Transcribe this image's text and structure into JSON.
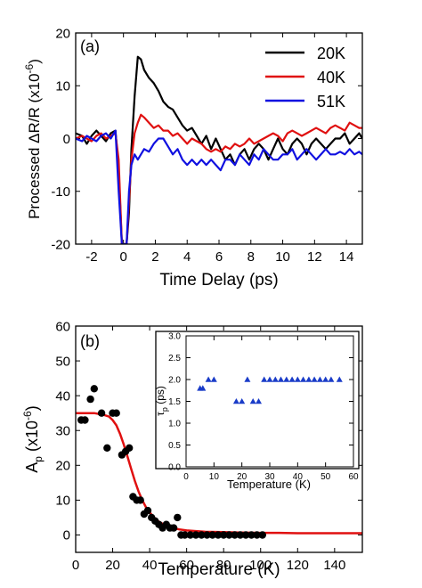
{
  "chart_data": [
    {
      "type": "line",
      "panel_label": "(a)",
      "xlabel": "Time Delay (ps)",
      "ylabel": "Processed ΔR/R (x10",
      "ylabel_exp": "-6",
      "ylabel_close": ")",
      "xlim": [
        -3,
        15
      ],
      "ylim": [
        -20,
        20
      ],
      "xticks": [
        -2,
        0,
        2,
        4,
        6,
        8,
        10,
        12,
        14
      ],
      "yticks": [
        -20,
        -10,
        0,
        10,
        20
      ],
      "legend_position": "top-right",
      "series": [
        {
          "name": "20K",
          "color": "#000000",
          "x": [
            -3,
            -2.6,
            -2.3,
            -2.0,
            -1.7,
            -1.4,
            -1.1,
            -0.8,
            -0.5,
            -0.3,
            -0.1,
            0.05,
            0.2,
            0.35,
            0.5,
            0.7,
            0.9,
            1.1,
            1.3,
            1.6,
            1.9,
            2.2,
            2.5,
            2.8,
            3.1,
            3.4,
            3.7,
            4.0,
            4.3,
            4.6,
            4.9,
            5.2,
            5.5,
            5.8,
            6.1,
            6.4,
            6.7,
            7.0,
            7.3,
            7.6,
            7.9,
            8.2,
            8.5,
            8.8,
            9.1,
            9.4,
            9.7,
            10.0,
            10.3,
            10.6,
            10.9,
            11.2,
            11.5,
            11.8,
            12.1,
            12.4,
            12.7,
            13.0,
            13.3,
            13.6,
            13.9,
            14.2,
            14.5,
            14.8,
            15.0
          ],
          "y": [
            1,
            0.5,
            -1,
            0.5,
            1.5,
            0.5,
            -0.5,
            1,
            1.5,
            -6,
            -20,
            -20,
            -20,
            -14,
            -2,
            8,
            15.5,
            15,
            13,
            11.5,
            10.5,
            9,
            7,
            6,
            5.5,
            4,
            2.5,
            1.5,
            2,
            0.5,
            -1,
            0.5,
            -2,
            0,
            -2,
            -4,
            -3,
            -5,
            -3,
            -2,
            -4,
            -2,
            -1,
            -2,
            -4,
            -2,
            0,
            -2,
            -3,
            -1,
            0,
            -1,
            -3,
            -1,
            0,
            -1,
            -2,
            -1,
            0,
            0,
            1,
            -1,
            0,
            1,
            0
          ]
        },
        {
          "name": "40K",
          "color": "#e01010",
          "x": [
            -3,
            -2.6,
            -2.3,
            -2.0,
            -1.7,
            -1.4,
            -1.1,
            -0.8,
            -0.5,
            -0.3,
            -0.1,
            0.05,
            0.2,
            0.35,
            0.5,
            0.7,
            0.9,
            1.1,
            1.3,
            1.6,
            1.9,
            2.2,
            2.5,
            2.8,
            3.1,
            3.4,
            3.7,
            4.0,
            4.3,
            4.6,
            4.9,
            5.2,
            5.5,
            5.8,
            6.1,
            6.4,
            6.7,
            7.0,
            7.3,
            7.6,
            7.9,
            8.2,
            8.5,
            8.8,
            9.1,
            9.4,
            9.7,
            10.0,
            10.3,
            10.6,
            10.9,
            11.2,
            11.5,
            11.8,
            12.1,
            12.4,
            12.7,
            13.0,
            13.3,
            13.6,
            13.9,
            14.2,
            14.5,
            14.8,
            15.0
          ],
          "y": [
            0,
            0.5,
            0,
            -0.5,
            0.5,
            1,
            0,
            0.5,
            1,
            -4,
            -20,
            -20,
            -20,
            -12,
            -4,
            1,
            3,
            4.5,
            4,
            3,
            2,
            2.5,
            1.5,
            1.5,
            0.5,
            1,
            0,
            -1,
            0,
            -0.5,
            -1,
            -2,
            -2.5,
            -2,
            -2.5,
            -1.5,
            -2,
            -1,
            -1.5,
            -1,
            0,
            -1,
            -0.5,
            0,
            0.5,
            1,
            0.5,
            -0.5,
            1,
            1.5,
            1,
            0.5,
            1,
            1.5,
            2,
            1.5,
            1,
            2,
            2.5,
            2,
            1.5,
            3,
            2.5,
            2,
            2
          ]
        },
        {
          "name": "51K",
          "color": "#1010e0",
          "x": [
            -3,
            -2.6,
            -2.3,
            -2.0,
            -1.7,
            -1.4,
            -1.1,
            -0.8,
            -0.5,
            -0.3,
            -0.1,
            0.05,
            0.2,
            0.35,
            0.5,
            0.7,
            0.9,
            1.1,
            1.3,
            1.6,
            1.9,
            2.2,
            2.5,
            2.8,
            3.1,
            3.4,
            3.7,
            4.0,
            4.3,
            4.6,
            4.9,
            5.2,
            5.5,
            5.8,
            6.1,
            6.4,
            6.7,
            7.0,
            7.3,
            7.6,
            7.9,
            8.2,
            8.5,
            8.8,
            9.1,
            9.4,
            9.7,
            10.0,
            10.3,
            10.6,
            10.9,
            11.2,
            11.5,
            11.8,
            12.1,
            12.4,
            12.7,
            13.0,
            13.3,
            13.6,
            13.9,
            14.2,
            14.5,
            14.8,
            15.0
          ],
          "y": [
            0,
            -0.5,
            0.5,
            0,
            -0.5,
            0.5,
            1,
            0,
            1.5,
            -10,
            -20,
            -20,
            -20,
            -10,
            -5,
            -3,
            -4,
            -3,
            -2,
            -2.5,
            -1,
            0,
            0,
            -1.5,
            -3,
            -2,
            -4,
            -5,
            -4,
            -5,
            -4,
            -5,
            -4,
            -5,
            -6,
            -4,
            -4,
            -5,
            -3,
            -4,
            -5,
            -3,
            -4,
            -2,
            -3,
            -4,
            -4,
            -3,
            -3,
            -2,
            -4,
            -3,
            -2,
            -3,
            -4,
            -3,
            -2,
            -3,
            -3,
            -2.5,
            -3,
            -2,
            -3,
            -2.5,
            -3
          ]
        }
      ]
    },
    {
      "type": "scatter",
      "panel_label": "(b)",
      "xlabel": "Temperature (K)",
      "ylabel_main": "A",
      "ylabel_sub": "p",
      "ylabel_rest": " (x10",
      "ylabel_exp": "-6",
      "ylabel_close": ")",
      "xlim": [
        0,
        155
      ],
      "ylim": [
        -5,
        60
      ],
      "xticks": [
        0,
        20,
        40,
        60,
        80,
        100,
        120,
        140
      ],
      "yticks": [
        0,
        10,
        20,
        30,
        40,
        50,
        60
      ],
      "series": [
        {
          "kind": "points",
          "color": "#000000",
          "x": [
            3,
            5,
            8,
            10,
            14,
            17,
            20,
            22,
            25,
            27,
            29,
            31,
            33,
            35,
            37,
            39,
            41,
            43,
            45,
            47,
            49,
            51,
            53,
            55,
            57,
            59,
            62,
            65,
            68,
            71,
            74,
            77,
            80,
            83,
            86,
            89,
            92,
            95,
            98,
            101
          ],
          "y": [
            33,
            33,
            39,
            42,
            35,
            25,
            35,
            35,
            23,
            24,
            25,
            11,
            10,
            10,
            6,
            7,
            5,
            4,
            3,
            2,
            3,
            2,
            2,
            5,
            0,
            0,
            0,
            0,
            0,
            0,
            0,
            0,
            0,
            0,
            0,
            0,
            0,
            0,
            0,
            0
          ]
        },
        {
          "kind": "fit-line",
          "color": "#e01010",
          "x": [
            0,
            5,
            10,
            15,
            18,
            20,
            22,
            24,
            26,
            28,
            30,
            32,
            34,
            36,
            38,
            40,
            42,
            45,
            48,
            52,
            56,
            60,
            70,
            80,
            90,
            100,
            110,
            120,
            130,
            140,
            155
          ],
          "y": [
            35,
            35,
            35,
            34.5,
            34,
            33,
            31.5,
            29,
            26,
            22.5,
            19,
            15.5,
            12.5,
            10,
            8,
            6.5,
            5.2,
            3.8,
            2.9,
            2.1,
            1.6,
            1.3,
            0.9,
            0.8,
            0.7,
            0.6,
            0.6,
            0.5,
            0.5,
            0.5,
            0.5
          ]
        }
      ],
      "inset": {
        "type": "scatter",
        "xlabel": "Temperature (K)",
        "ylabel_main": "τ",
        "ylabel_sub": "p",
        "ylabel_rest": " (ps)",
        "xlim": [
          0,
          60
        ],
        "ylim": [
          0,
          3.0
        ],
        "xticks": [
          0,
          10,
          20,
          30,
          40,
          50,
          60
        ],
        "yticks": [
          0.0,
          0.5,
          1.0,
          1.5,
          2.0,
          2.5,
          3.0
        ],
        "ytick_labels": [
          "0.0",
          "0.5",
          "1.0",
          "1.5",
          "2.0",
          "2.5",
          "3.0"
        ],
        "color": "#1a3cc8",
        "x": [
          5,
          6,
          8,
          10,
          18,
          20,
          22,
          24,
          26,
          28,
          30,
          32,
          34,
          36,
          38,
          40,
          42,
          44,
          46,
          48,
          50,
          52,
          55
        ],
        "y": [
          1.8,
          1.8,
          2.0,
          2.0,
          1.5,
          1.5,
          2.0,
          1.5,
          1.5,
          2.0,
          2.0,
          2.0,
          2.0,
          2.0,
          2.0,
          2.0,
          2.0,
          2.0,
          2.0,
          2.0,
          2.0,
          2.0,
          2.0
        ]
      }
    }
  ]
}
